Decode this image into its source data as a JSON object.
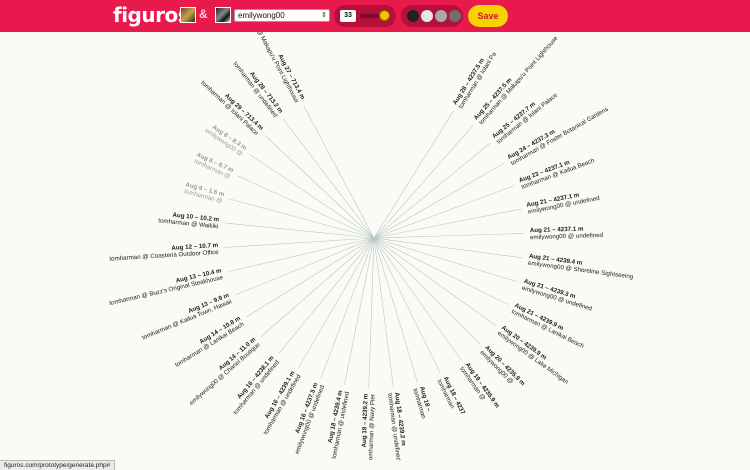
{
  "app": {
    "logo": "figuros"
  },
  "toolbar": {
    "ampersand": "&",
    "selected_user": "emilywong00",
    "count": "33",
    "slider_fraction": 0.85,
    "swatches": [
      "#222222",
      "#e6e6e6",
      "#a9a9a9",
      "#6e6e6e"
    ],
    "save_label": "Save"
  },
  "status_bar": {
    "url": "figuros.com/prototype/generate.php#"
  },
  "radial": {
    "entries": [
      {
        "date": "Aug 28 – 4237.5 m",
        "text": "tomharman @ Iolani Pa"
      },
      {
        "date": "Aug 25 – 4237.5 m",
        "text": "tomharman @ Makapu'u Point Lighthouse"
      },
      {
        "date": "Aug 25 – 4237.7 m",
        "text": "tomharman @ Iolani Palace"
      },
      {
        "date": "Aug 24 – 4237.3 m",
        "text": "tomharman @ Foster Botanical Gardens"
      },
      {
        "date": "Aug 23 – 4237.1 m",
        "text": "tomharman @ Kailua Beach"
      },
      {
        "date": "Aug 21 – 4237.1 m",
        "text": "emilywong00 @ undefined"
      },
      {
        "date": "Aug 21 – 4237.1 m",
        "text": "emilywong00 @ undefined"
      },
      {
        "date": "Aug 21 – 4239.4 m",
        "text": "emilywong00 @ Shoreline Sightseeing"
      },
      {
        "date": "Aug 21 – 4239.3 m",
        "text": "emilywong00 @ undefined"
      },
      {
        "date": "Aug 21 – 4239.9 m",
        "text": "tomharman @ Lanikai Beach"
      },
      {
        "date": "Aug 20 – 4239.9 m",
        "text": "emilywong00 @ Lake Michigan"
      },
      {
        "date": "Aug 20 – 4235.9 m",
        "text": "emilywong00 @"
      },
      {
        "date": "Aug 19 – 4235.9 m",
        "text": "tomharman @"
      },
      {
        "date": "Aug 18 – 4237",
        "text": "tomharman"
      },
      {
        "date": "Aug 18 –",
        "text": "tomharman"
      },
      {
        "date": "Aug 18 – 4239.2 m",
        "text": "tomharman @ undefined"
      },
      {
        "date": "Aug 18 – 4239.2 m",
        "text": "tomharman @ Navy Pier"
      },
      {
        "date": "Aug 18 – 4239.4 m",
        "text": "tomharman @ undefined"
      },
      {
        "date": "Aug 16 – 4237.5 m",
        "text": "emilywong00 @ undefined"
      },
      {
        "date": "Aug 16 – 4239.1 m",
        "text": "tomharman @ undefined"
      },
      {
        "date": "Aug 16 – 4238.1 m",
        "text": "tomharman @ undefined"
      },
      {
        "date": "Aug 14 – 11.0 m",
        "text": "emilywong00 @ Chanel Boutique"
      },
      {
        "date": "Aug 14 – 10.8 m",
        "text": "tomharman @ Lanikai Beach"
      },
      {
        "date": "Aug 13 – 9.9 m",
        "text": "tomharman @ Kailua Town, Hawaii"
      },
      {
        "date": "Aug 13 – 10.4 m",
        "text": "tomharman @ Buzz's Original Steakhouse"
      },
      {
        "date": "Aug 12 – 10.7 m",
        "text": "tomharman @ Coasteria Outdoor Office"
      },
      {
        "date": "Aug 10 – 10.2 m",
        "text": "tomharman @ Waikiki"
      },
      {
        "date": "Aug 9 – 1.6 m",
        "text": "tomharman @"
      },
      {
        "date": "Aug 8 – 8.7 m",
        "text": "tomharman @"
      },
      {
        "date": "Aug 8 – 8.3 m",
        "text": "emilywong00 @"
      },
      {
        "date": "Aug 29 – 713.4 m",
        "text": "tomharman @ Iolani Palace"
      },
      {
        "date": "Aug 28 – 713.2 m",
        "text": "tomharman @ undefined"
      },
      {
        "date": "Aug 27 – 713.4 m",
        "text": "tomharman @ Makapu'u Point Lighthouse"
      }
    ]
  }
}
